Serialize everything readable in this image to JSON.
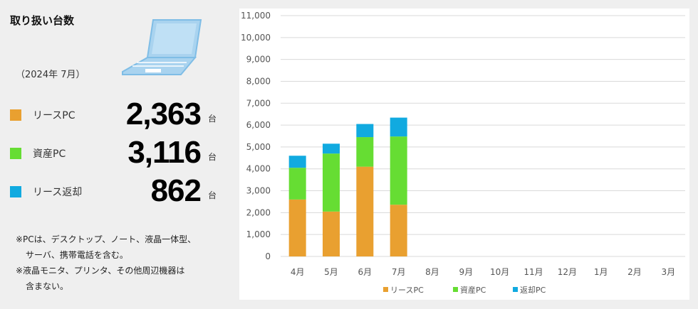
{
  "summary": {
    "title": "取り扱い台数",
    "period": "（2024年 7月）",
    "stats": [
      {
        "label": "リースPC",
        "value": "2,363",
        "unit": "台"
      },
      {
        "label": "資産PC",
        "value": "3,116",
        "unit": "台"
      },
      {
        "label": "リース返却",
        "value": "862",
        "unit": "台"
      }
    ],
    "notes": [
      "※PCは、デスクトップ、ノート、液晶一体型、",
      "サーバ、携帯電話を含む。",
      "※液晶モニタ、プリンタ、その他周辺機器は",
      "含まない。"
    ]
  },
  "colors": {
    "lease": "#e9a030",
    "asset": "#66dd33",
    "return": "#11aae0"
  },
  "icons": [
    "laptop-icon"
  ],
  "chart_data": {
    "type": "bar",
    "stacked": true,
    "categories": [
      "4月",
      "5月",
      "6月",
      "7月",
      "8月",
      "9月",
      "10月",
      "11月",
      "12月",
      "1月",
      "2月",
      "3月"
    ],
    "series": [
      {
        "name": "リースPC",
        "color": "#e9a030",
        "values": [
          2600,
          2050,
          4100,
          2363,
          null,
          null,
          null,
          null,
          null,
          null,
          null,
          null
        ]
      },
      {
        "name": "資産PC",
        "color": "#66dd33",
        "values": [
          1450,
          2650,
          1350,
          3116,
          null,
          null,
          null,
          null,
          null,
          null,
          null,
          null
        ]
      },
      {
        "name": "返却PC",
        "color": "#11aae0",
        "values": [
          550,
          450,
          600,
          862,
          null,
          null,
          null,
          null,
          null,
          null,
          null,
          null
        ]
      }
    ],
    "ylim": [
      0,
      11000
    ],
    "yticks": [
      0,
      1000,
      2000,
      3000,
      4000,
      5000,
      6000,
      7000,
      8000,
      9000,
      10000,
      11000
    ],
    "ytick_labels": [
      "0",
      "1,000",
      "2,000",
      "3,000",
      "4,000",
      "5,000",
      "6,000",
      "7,000",
      "8,000",
      "9,000",
      "10,000",
      "11,000"
    ],
    "grid": true,
    "legend": "bottom"
  }
}
